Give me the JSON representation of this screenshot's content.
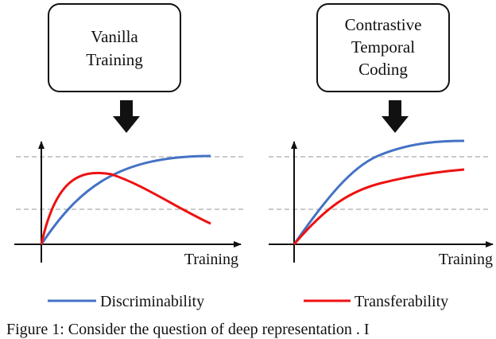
{
  "panels": [
    {
      "method_lines": [
        "Vanilla",
        "Training"
      ],
      "x_label": "Training"
    },
    {
      "method_lines": [
        "Contrastive",
        "Temporal",
        "Coding"
      ],
      "x_label": "Training"
    }
  ],
  "legend": {
    "discriminability": "Discriminability",
    "transferability": "Transferability"
  },
  "colors": {
    "discriminability": "#4472c4",
    "transferability": "#ee1111",
    "reference_line": "#b8b8b8"
  },
  "caption": "Figure 1:  Consider the question of deep representation . I"
}
